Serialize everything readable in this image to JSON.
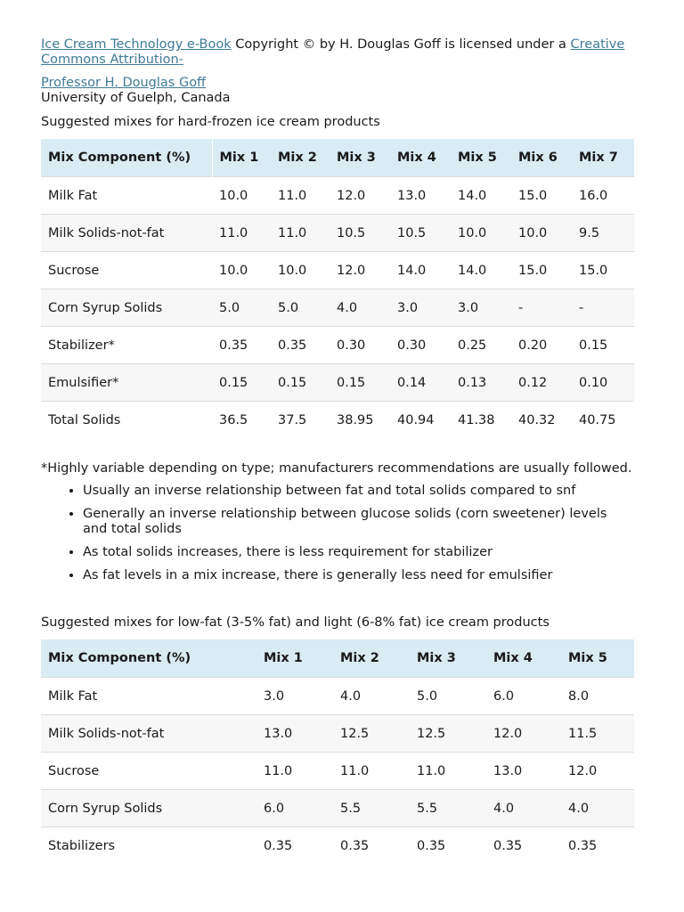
{
  "attribution": {
    "book_link": "Ice Cream Technology e-Book",
    "middle_text": " Copyright © by H. Douglas Goff is licensed under a ",
    "license_link": "Creative Commons Attribution-",
    "author_link": "Professor H. Douglas Goff",
    "affiliation": "University of Guelph, Canada"
  },
  "table1": {
    "caption": "Suggested mixes for hard-frozen ice cream products",
    "headers": [
      "Mix Component (%)",
      "Mix 1",
      "Mix 2",
      "Mix 3",
      "Mix 4",
      "Mix 5",
      "Mix 6",
      "Mix 7"
    ],
    "rows": [
      [
        "Milk Fat",
        "10.0",
        "11.0",
        "12.0",
        "13.0",
        "14.0",
        "15.0",
        "16.0"
      ],
      [
        "Milk Solids-not-fat",
        "11.0",
        "11.0",
        "10.5",
        "10.5",
        "10.0",
        "10.0",
        "9.5"
      ],
      [
        "Sucrose",
        "10.0",
        "10.0",
        "12.0",
        "14.0",
        "14.0",
        "15.0",
        "15.0"
      ],
      [
        "Corn Syrup Solids",
        "5.0",
        "5.0",
        "4.0",
        "3.0",
        "3.0",
        "-",
        "-"
      ],
      [
        "Stabilizer*",
        "0.35",
        "0.35",
        "0.30",
        "0.30",
        "0.25",
        "0.20",
        "0.15"
      ],
      [
        "Emulsifier*",
        "0.15",
        "0.15",
        "0.15",
        "0.14",
        "0.13",
        "0.12",
        "0.10"
      ],
      [
        "Total Solids",
        "36.5",
        "37.5",
        "38.95",
        "40.94",
        "41.38",
        "40.32",
        "40.75"
      ]
    ]
  },
  "footnote": "*Highly variable depending on type; manufacturers recommendations are usually followed.",
  "bullets": [
    "Usually an inverse relationship between fat and total solids compared to snf",
    "Generally an inverse relationship between glucose solids (corn sweetener) levels and total solids",
    "As total solids increases, there is less requirement for stabilizer",
    "As fat levels in a mix increase, there is generally less need for emulsifier"
  ],
  "table2": {
    "caption": "Suggested mixes for low-fat (3-5% fat) and light (6-8% fat) ice cream products",
    "headers": [
      "Mix Component (%)",
      "Mix 1",
      "Mix 2",
      "Mix 3",
      "Mix 4",
      "Mix 5"
    ],
    "rows": [
      [
        "Milk Fat",
        "3.0",
        "4.0",
        "5.0",
        "6.0",
        "8.0"
      ],
      [
        "Milk Solids-not-fat",
        "13.0",
        "12.5",
        "12.5",
        "12.0",
        "11.5"
      ],
      [
        "Sucrose",
        "11.0",
        "11.0",
        "11.0",
        "13.0",
        "12.0"
      ],
      [
        "Corn Syrup Solids",
        "6.0",
        "5.5",
        "5.5",
        "4.0",
        "4.0"
      ],
      [
        "Stabilizers",
        "0.35",
        "0.35",
        "0.35",
        "0.35",
        "0.35"
      ]
    ]
  }
}
